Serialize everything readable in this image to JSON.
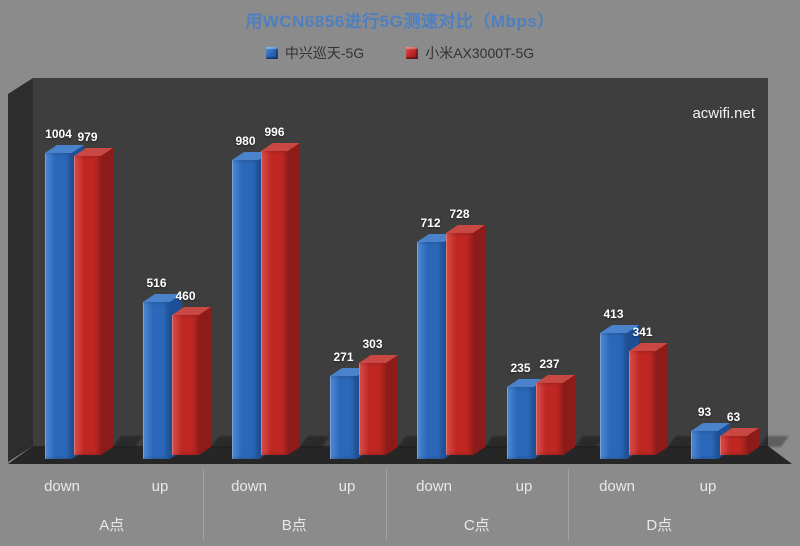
{
  "watermark": "acwifi.net",
  "chart_data": {
    "type": "bar",
    "title": "用WCN6856进行5G测速对比（Mbps）",
    "unit": "Mbps",
    "style_3d": true,
    "y_axis_visible": false,
    "grid": false,
    "legend_position": "top",
    "ylim": [
      0,
      1100
    ],
    "group_labels": [
      "A点",
      "B点",
      "C点",
      "D点"
    ],
    "x_labels": [
      "down",
      "up",
      "down",
      "up",
      "down",
      "up",
      "down",
      "up"
    ],
    "series": [
      {
        "name": "中兴巡天-5G",
        "values": [
          1004,
          516,
          980,
          271,
          712,
          235,
          413,
          93
        ],
        "color": "#2b68ba",
        "color_light": "#5089d4",
        "color_dark": "#1d4f96",
        "color_top": "#4a82cc"
      },
      {
        "name": "小米AX3000T-5G",
        "values": [
          979,
          460,
          996,
          303,
          728,
          237,
          341,
          63
        ],
        "color": "#c02723",
        "color_light": "#d8504c",
        "color_dark": "#8c1b19",
        "color_top": "#ca4844"
      }
    ]
  },
  "colors": {
    "background": "#8b8b8b",
    "wall": "#3e3e3e",
    "wall_side": "#2d2d2d",
    "floor": "#262626",
    "title": "#4e7fc1",
    "legend_text": "#333333",
    "axis_text": "#e9e9e9",
    "value_label": "#ffffff",
    "divider": "#9b9b9b"
  }
}
